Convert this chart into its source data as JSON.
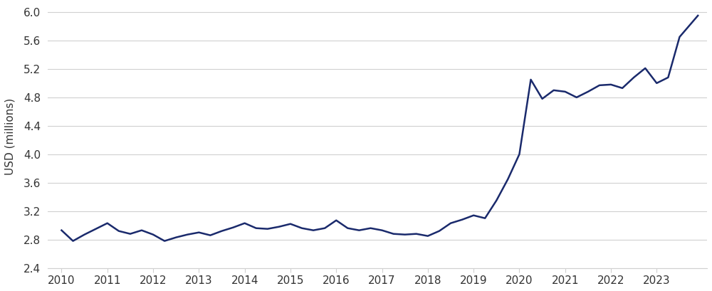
{
  "x": [
    2010.0,
    2010.25,
    2010.5,
    2010.75,
    2011.0,
    2011.25,
    2011.5,
    2011.75,
    2012.0,
    2012.25,
    2012.5,
    2012.75,
    2013.0,
    2013.25,
    2013.5,
    2013.75,
    2014.0,
    2014.25,
    2014.5,
    2014.75,
    2015.0,
    2015.25,
    2015.5,
    2015.75,
    2016.0,
    2016.25,
    2016.5,
    2016.75,
    2017.0,
    2017.25,
    2017.5,
    2017.75,
    2018.0,
    2018.25,
    2018.5,
    2018.75,
    2019.0,
    2019.25,
    2019.5,
    2019.75,
    2020.0,
    2020.25,
    2020.5,
    2020.75,
    2021.0,
    2021.25,
    2021.5,
    2021.75,
    2022.0,
    2022.25,
    2022.5,
    2022.75,
    2023.0,
    2023.25,
    2023.5,
    2023.9
  ],
  "y": [
    2.93,
    2.78,
    2.87,
    2.95,
    3.03,
    2.92,
    2.88,
    2.93,
    2.87,
    2.78,
    2.83,
    2.87,
    2.9,
    2.86,
    2.92,
    2.97,
    3.03,
    2.96,
    2.95,
    2.98,
    3.02,
    2.96,
    2.93,
    2.96,
    3.07,
    2.96,
    2.93,
    2.96,
    2.93,
    2.88,
    2.87,
    2.88,
    2.85,
    2.92,
    3.03,
    3.08,
    3.14,
    3.1,
    3.35,
    3.65,
    4.0,
    5.05,
    4.78,
    4.9,
    4.88,
    4.8,
    4.88,
    4.97,
    4.98,
    4.93,
    5.08,
    5.21,
    5.0,
    5.08,
    5.65,
    5.95
  ],
  "line_color": "#1a2a6c",
  "line_width": 1.8,
  "ylabel": "USD (millions)",
  "ylim": [
    2.4,
    6.1
  ],
  "yticks": [
    2.4,
    2.8,
    3.2,
    3.6,
    4.0,
    4.4,
    4.8,
    5.2,
    5.6,
    6.0
  ],
  "xticks": [
    2010,
    2011,
    2012,
    2013,
    2014,
    2015,
    2016,
    2017,
    2018,
    2019,
    2020,
    2021,
    2022,
    2023
  ],
  "xlim": [
    2009.7,
    2024.1
  ],
  "grid_color": "#d0d0d0",
  "background_color": "#ffffff",
  "tick_label_fontsize": 11,
  "ylabel_fontsize": 11
}
